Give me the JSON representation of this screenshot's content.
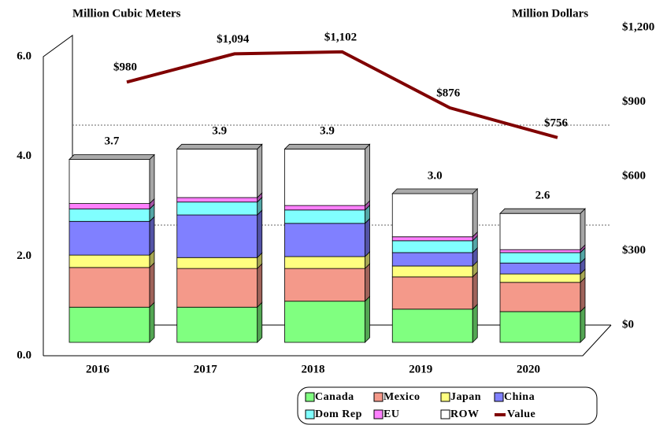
{
  "chart_data": {
    "type": "stacked_bar_line",
    "y_label": "Million Cubic Meters",
    "y2_label": "Million Dollars",
    "categories": [
      "2016",
      "2017",
      "2018",
      "2019",
      "2020"
    ],
    "ylim": [
      0,
      6
    ],
    "yticks": [
      {
        "value": 0,
        "label": "0.0"
      },
      {
        "value": 2,
        "label": "2.0"
      },
      {
        "value": 4,
        "label": "4.0"
      },
      {
        "value": 6,
        "label": "6.0"
      }
    ],
    "y2lim": [
      0,
      1200
    ],
    "y2ticks": [
      {
        "value": 0,
        "label": "$0"
      },
      {
        "value": 300,
        "label": "$300"
      },
      {
        "value": 600,
        "label": "$600"
      },
      {
        "value": 900,
        "label": "$900"
      },
      {
        "value": 1200,
        "label": "$1,200"
      }
    ],
    "grid": true,
    "series": [
      {
        "name": "Canada",
        "color": "#80ff80",
        "values": [
          0.71,
          0.71,
          0.83,
          0.67,
          0.62
        ]
      },
      {
        "name": "Mexico",
        "color": "#f4998a",
        "values": [
          0.8,
          0.78,
          0.66,
          0.65,
          0.59
        ]
      },
      {
        "name": "Japan",
        "color": "#ffff80",
        "values": [
          0.25,
          0.22,
          0.24,
          0.22,
          0.17
        ]
      },
      {
        "name": "China",
        "color": "#8080ff",
        "values": [
          0.68,
          0.86,
          0.67,
          0.27,
          0.22
        ]
      },
      {
        "name": "Dom Rep",
        "color": "#80ffff",
        "values": [
          0.25,
          0.26,
          0.27,
          0.24,
          0.21
        ]
      },
      {
        "name": "EU",
        "color": "#ff80ff",
        "values": [
          0.11,
          0.09,
          0.09,
          0.08,
          0.06
        ]
      },
      {
        "name": "ROW",
        "color": "#ffffff",
        "values": [
          0.89,
          0.98,
          1.14,
          0.87,
          0.73
        ]
      },
      {
        "name": "Value",
        "color": "#800000",
        "axis": "y2",
        "values": [
          980,
          1094,
          1102,
          876,
          756
        ],
        "value_labels": [
          "$980",
          "$1,094",
          "$1,102",
          "$876",
          "$756"
        ]
      }
    ],
    "totals": {
      "values": [
        3.7,
        3.9,
        3.9,
        3.0,
        2.6
      ],
      "value_labels": [
        "3.7",
        "3.9",
        "3.9",
        "3.0",
        "2.6"
      ]
    }
  }
}
